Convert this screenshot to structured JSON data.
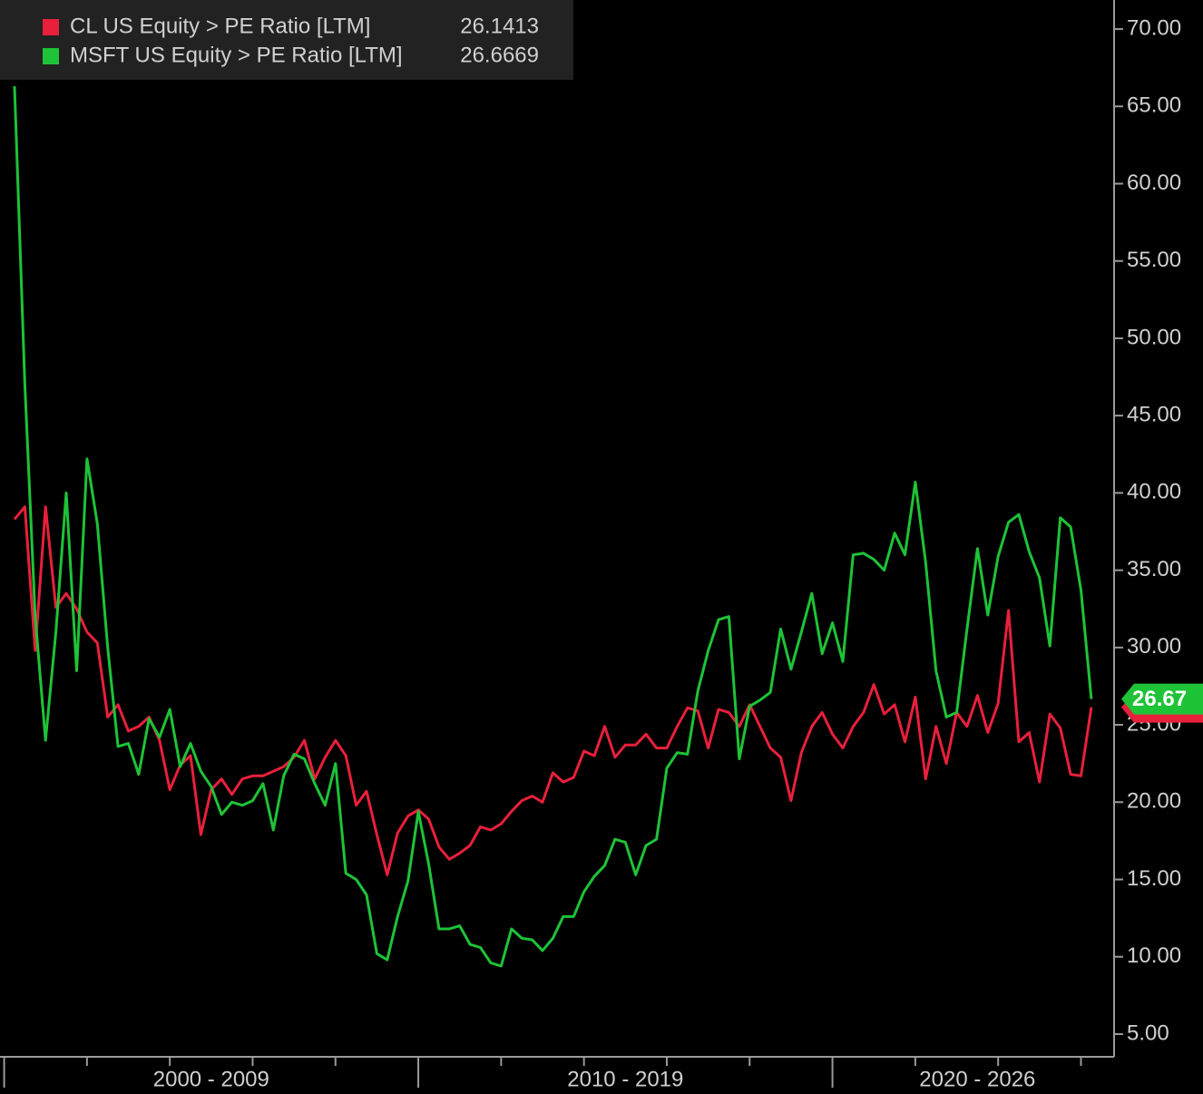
{
  "chart_data": {
    "type": "line",
    "xlim": [
      1999.9,
      2026.8
    ],
    "xticks": [
      2000,
      2002,
      2004,
      2006,
      2008,
      2010,
      2012,
      2014,
      2016,
      2018,
      2020,
      2022,
      2024,
      2026
    ],
    "x_ranges": [
      {
        "label": "2000 - 2009",
        "span": [
          2000,
          2010
        ]
      },
      {
        "label": "2010 - 2019",
        "span": [
          2010,
          2020
        ]
      },
      {
        "label": "2020 - 2026",
        "span": [
          2020,
          2027
        ]
      }
    ],
    "ylim": [
      3.53,
      71.88
    ],
    "yticks": [
      {
        "value": 5,
        "label": "5.00"
      },
      {
        "value": 10,
        "label": "10.00"
      },
      {
        "value": 15,
        "label": "15.00"
      },
      {
        "value": 20,
        "label": "20.00"
      },
      {
        "value": 25,
        "label": "25.00"
      },
      {
        "value": 30,
        "label": "30.00"
      },
      {
        "value": 35,
        "label": "35.00"
      },
      {
        "value": 40,
        "label": "40.00"
      },
      {
        "value": 45,
        "label": "45.00"
      },
      {
        "value": 50,
        "label": "50.00"
      },
      {
        "value": 55,
        "label": "55.00"
      },
      {
        "value": 60,
        "label": "60.00"
      },
      {
        "value": 65,
        "label": "65.00"
      },
      {
        "value": 70,
        "label": "70.00"
      }
    ],
    "x": [
      2000.25,
      2000.5,
      2000.75,
      2001,
      2001.25,
      2001.5,
      2001.75,
      2002,
      2002.25,
      2002.5,
      2002.75,
      2003,
      2003.25,
      2003.5,
      2003.75,
      2004,
      2004.25,
      2004.5,
      2004.75,
      2005,
      2005.25,
      2005.5,
      2005.75,
      2006,
      2006.25,
      2006.5,
      2006.75,
      2007,
      2007.25,
      2007.5,
      2007.75,
      2008,
      2008.25,
      2008.5,
      2008.75,
      2009,
      2009.25,
      2009.5,
      2009.75,
      2010,
      2010.25,
      2010.5,
      2010.75,
      2011,
      2011.25,
      2011.5,
      2011.75,
      2012,
      2012.25,
      2012.5,
      2012.75,
      2013,
      2013.25,
      2013.5,
      2013.75,
      2014,
      2014.25,
      2014.5,
      2014.75,
      2015,
      2015.25,
      2015.5,
      2015.75,
      2016,
      2016.25,
      2016.5,
      2016.75,
      2017,
      2017.25,
      2017.5,
      2017.75,
      2018,
      2018.25,
      2018.5,
      2018.75,
      2019,
      2019.25,
      2019.5,
      2019.75,
      2020,
      2020.25,
      2020.5,
      2020.75,
      2021,
      2021.25,
      2021.5,
      2021.75,
      2022,
      2022.25,
      2022.5,
      2022.75,
      2023,
      2023.25,
      2023.5,
      2023.75,
      2024,
      2024.25,
      2024.5,
      2024.75,
      2025,
      2025.25,
      2025.5,
      2025.75,
      2026,
      2026.25
    ],
    "series": [
      {
        "name": "CL US Equity > PE Ratio [LTM]",
        "color": "#e8203c",
        "last_value": 26.1413,
        "values": [
          38.3,
          39.1,
          29.8,
          39.1,
          32.6,
          33.5,
          32.5,
          31,
          30.3,
          25.5,
          26.3,
          24.6,
          24.9,
          25.5,
          24,
          20.8,
          22.4,
          23,
          17.9,
          20.8,
          21.5,
          20.5,
          21.5,
          21.7,
          21.7,
          22,
          22.3,
          22.9,
          24,
          21.5,
          22.9,
          24,
          23,
          19.8,
          20.7,
          17.9,
          15.3,
          18,
          19.1,
          19.5,
          18.9,
          17.1,
          16.3,
          16.7,
          17.2,
          18.4,
          18.2,
          18.6,
          19.4,
          20.1,
          20.4,
          20,
          21.9,
          21.3,
          21.6,
          23.3,
          23,
          24.9,
          22.9,
          23.7,
          23.7,
          24.4,
          23.5,
          23.5,
          24.9,
          26.1,
          25.9,
          23.5,
          26,
          25.8,
          24.9,
          26.3,
          24.9,
          23.5,
          22.9,
          20.1,
          23.2,
          24.9,
          25.8,
          24.4,
          23.5,
          24.9,
          25.8,
          27.6,
          25.7,
          26.3,
          23.9,
          26.8,
          21.5,
          24.9,
          22.5,
          25.8,
          24.9,
          26.9,
          24.5,
          26.4,
          32.4,
          23.9,
          24.5,
          21.3,
          25.7,
          24.8,
          21.8,
          21.7,
          26.14
        ]
      },
      {
        "name": "MSFT US Equity > PE Ratio [LTM]",
        "color": "#1ec337",
        "last_value": 26.6669,
        "tag_label": "26.67",
        "values": [
          66.3,
          47,
          32,
          24,
          31,
          40,
          28.5,
          42.2,
          38,
          30,
          23.6,
          23.8,
          21.8,
          25.4,
          24.2,
          26,
          22.3,
          23.8,
          22,
          21,
          19.2,
          20,
          19.8,
          20.1,
          21.2,
          18.2,
          21.7,
          23.1,
          22.8,
          21.2,
          19.8,
          22.5,
          15.4,
          15,
          14,
          10.2,
          9.8,
          12.6,
          14.9,
          19.4,
          16,
          11.8,
          11.8,
          12,
          10.8,
          10.6,
          9.6,
          9.4,
          11.8,
          11.2,
          11.1,
          10.4,
          11.2,
          12.6,
          12.6,
          14.2,
          15.2,
          15.9,
          17.6,
          17.4,
          15.3,
          17.2,
          17.6,
          22.2,
          23.2,
          23.1,
          27.2,
          29.8,
          31.8,
          32,
          22.8,
          26.2,
          26.6,
          27.1,
          31.2,
          28.6,
          31,
          33.5,
          29.6,
          31.6,
          29.1,
          36,
          36.1,
          35.7,
          35,
          37.4,
          36,
          40.7,
          35.5,
          28.5,
          25.5,
          25.8,
          31.2,
          36.4,
          32.1,
          35.9,
          38.1,
          38.6,
          36.2,
          34.5,
          30.1,
          38.4,
          37.8,
          33.7,
          26.67
        ]
      }
    ]
  }
}
